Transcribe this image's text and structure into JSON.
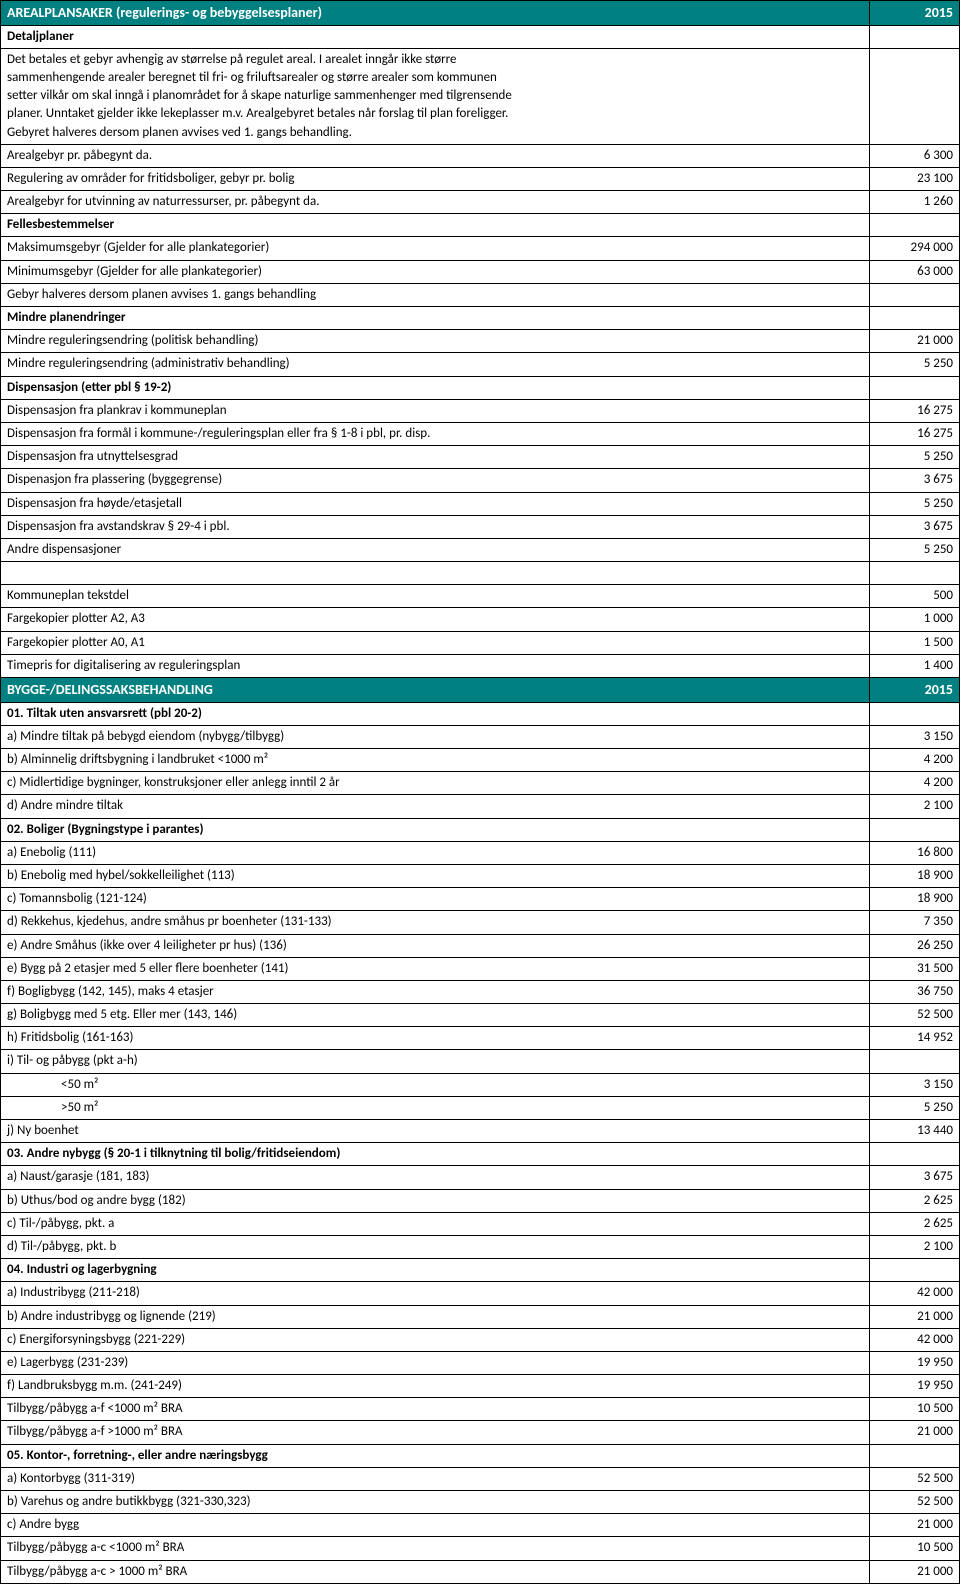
{
  "colors": {
    "header_bg": "#008080",
    "header_fg": "#ffffff",
    "border": "#000000",
    "text": "#000000"
  },
  "section1": {
    "title": "AREALPLANSAKER    (regulerings- og bebyggelsesplaner)",
    "year": "2015",
    "sub": "Detaljplaner",
    "desc_lines": [
      "Det betales et gebyr avhengig av størrelse på regulet areal. I arealet inngår ikke større",
      "sammenhengende arealer beregnet til fri- og friluftsarealer og større arealer som kommunen",
      "setter vilkår om skal inngå i planområdet for å skape naturlige sammenhenger med tilgrensende",
      "planer. Unntaket gjelder ikke lekeplasser m.v. Arealgebyret betales når forslag til plan foreligger.",
      "Gebyret halveres dersom planen avvises ved 1. gangs behandling."
    ],
    "rows": [
      {
        "label": "Arealgebyr pr. påbegynt da.",
        "val": "6 300"
      },
      {
        "label": "Regulering av områder for fritidsboliger, gebyr pr. bolig",
        "val": "23 100"
      },
      {
        "label": "Arealgebyr for utvinning av naturressurser, pr. påbegynt da.",
        "val": "1 260"
      }
    ],
    "felles": {
      "title": "Fellesbestemmelser",
      "rows": [
        {
          "label": "Maksimumsgebyr (Gjelder for alle plankategorier)",
          "val": "294 000"
        },
        {
          "label": "Minimumsgebyr (Gjelder for alle plankategorier)",
          "val": "63 000"
        },
        {
          "label": "Gebyr halveres dersom planen avvises 1. gangs behandling",
          "val": ""
        }
      ]
    },
    "mindre": {
      "title": "Mindre planendringer",
      "rows": [
        {
          "label": "Mindre reguleringsendring (politisk behandling)",
          "val": "21 000"
        },
        {
          "label": "Mindre reguleringsendring (administrativ behandling)",
          "val": "5 250"
        }
      ]
    },
    "disp": {
      "title": "Dispensasjon (etter pbl § 19-2)",
      "rows": [
        {
          "label": "Dispensasjon fra plankrav i kommuneplan",
          "val": "16 275"
        },
        {
          "label": "Dispensasjon fra formål i kommune-/reguleringsplan eller fra § 1-8 i pbl, pr. disp.",
          "val": "16 275"
        },
        {
          "label": "Dispensasjon fra utnyttelsesgrad",
          "val": "5 250"
        },
        {
          "label": "Dispenasjon fra plassering (byggegrense)",
          "val": "3 675"
        },
        {
          "label": "Dispensasjon fra høyde/etasjetall",
          "val": "5 250"
        },
        {
          "label": "Dispensasjon fra avstandskrav § 29-4 i pbl.",
          "val": "3 675"
        },
        {
          "label": "Andre dispensasjoner",
          "val": "5 250"
        }
      ]
    },
    "extras": [
      {
        "label": "Kommuneplan tekstdel",
        "val": "500"
      },
      {
        "label": "Fargekopier plotter A2, A3",
        "val": "1 000"
      },
      {
        "label": "Fargekopier plotter A0, A1",
        "val": "1 500"
      },
      {
        "label": "Timepris for digitalisering av reguleringsplan",
        "val": "1 400"
      }
    ]
  },
  "section2": {
    "title": "BYGGE-/DELINGSSAKSBEHANDLING",
    "year": "2015",
    "groups": [
      {
        "title": "01. Tiltak uten ansvarsrett (pbl 20-2)",
        "rows": [
          {
            "label": "a) Mindre tiltak på bebygd eiendom (nybygg/tilbygg)",
            "val": "3 150"
          },
          {
            "label": "b) Alminnelig driftsbygning i landbruket <1000 m²",
            "val": "4 200"
          },
          {
            "label": "c) Midlertidige bygninger, konstruksjoner eller anlegg inntil 2 år",
            "val": "4 200"
          },
          {
            "label": "d) Andre mindre tiltak",
            "val": "2 100"
          }
        ]
      },
      {
        "title": "02. Boliger (Bygningstype i parantes)",
        "rows": [
          {
            "label": "a) Enebolig (111)",
            "val": "16 800"
          },
          {
            "label": "b) Enebolig med hybel/sokkelleilighet (113)",
            "val": "18 900"
          },
          {
            "label": "c) Tomannsbolig (121-124)",
            "val": "18 900"
          },
          {
            "label": "d) Rekkehus, kjedehus, andre småhus pr boenheter  (131-133)",
            "val": "7 350"
          },
          {
            "label": "e) Andre Småhus (ikke over 4 leiligheter pr hus) (136)",
            "val": "26 250"
          },
          {
            "label": "e) Bygg på 2 etasjer med 5 eller flere boenheter (141)",
            "val": "31 500"
          },
          {
            "label": "f) Bogligbygg (142, 145), maks 4 etasjer",
            "val": "36 750"
          },
          {
            "label": "g) Boligbygg med 5 etg. Eller mer (143, 146)",
            "val": "52 500"
          },
          {
            "label": "h) Fritidsbolig (161-163)",
            "val": "14 952"
          },
          {
            "label": "i) Til- og påbygg (pkt a-h)",
            "val": ""
          },
          {
            "label": "<50 m²",
            "val": "3 150",
            "indent": true
          },
          {
            "label": ">50 m²",
            "val": "5 250",
            "indent": true
          },
          {
            "label": "j) Ny boenhet",
            "val": "13 440"
          }
        ]
      },
      {
        "title": "03. Andre nybygg (§ 20-1 i tilknytning til bolig/fritidseiendom)",
        "rows": [
          {
            "label": "a) Naust/garasje (181, 183)",
            "val": "3 675"
          },
          {
            "label": "b) Uthus/bod og andre bygg (182)",
            "val": "2 625"
          },
          {
            "label": "c) Til-/påbygg, pkt. a",
            "val": "2 625"
          },
          {
            "label": "d) Til-/påbygg, pkt. b",
            "val": "2 100"
          }
        ]
      },
      {
        "title": "04. Industri og lagerbygning",
        "rows": [
          {
            "label": "a) Industribygg (211-218)",
            "val": "42 000"
          },
          {
            "label": "b) Andre industribygg og lignende (219)",
            "val": "21 000"
          },
          {
            "label": "c) Energiforsyningsbygg (221-229)",
            "val": "42 000"
          },
          {
            "label": "e) Lagerbygg (231-239)",
            "val": "19 950"
          },
          {
            "label": "f) Landbruksbygg m.m. (241-249)",
            "val": "19 950"
          },
          {
            "label": "Tilbygg/påbygg a-f  <1000 m² BRA",
            "val": "10 500"
          },
          {
            "label": "Tilbygg/påbygg a-f  >1000 m² BRA",
            "val": "21 000"
          }
        ]
      },
      {
        "title": "05. Kontor-, forretning-, eller andre næringsbygg",
        "rows": [
          {
            "label": "a) Kontorbygg (311-319)",
            "val": "52 500"
          },
          {
            "label": "b) Varehus og andre butikkbygg (321-330,323)",
            "val": "52 500"
          },
          {
            "label": "c) Andre bygg",
            "val": "21 000"
          },
          {
            "label": "Tilbygg/påbygg a-c  <1000 m² BRA",
            "val": "10 500"
          },
          {
            "label": "Tilbygg/påbygg a-c  > 1000 m² BRA",
            "val": "21 000"
          }
        ]
      }
    ]
  }
}
